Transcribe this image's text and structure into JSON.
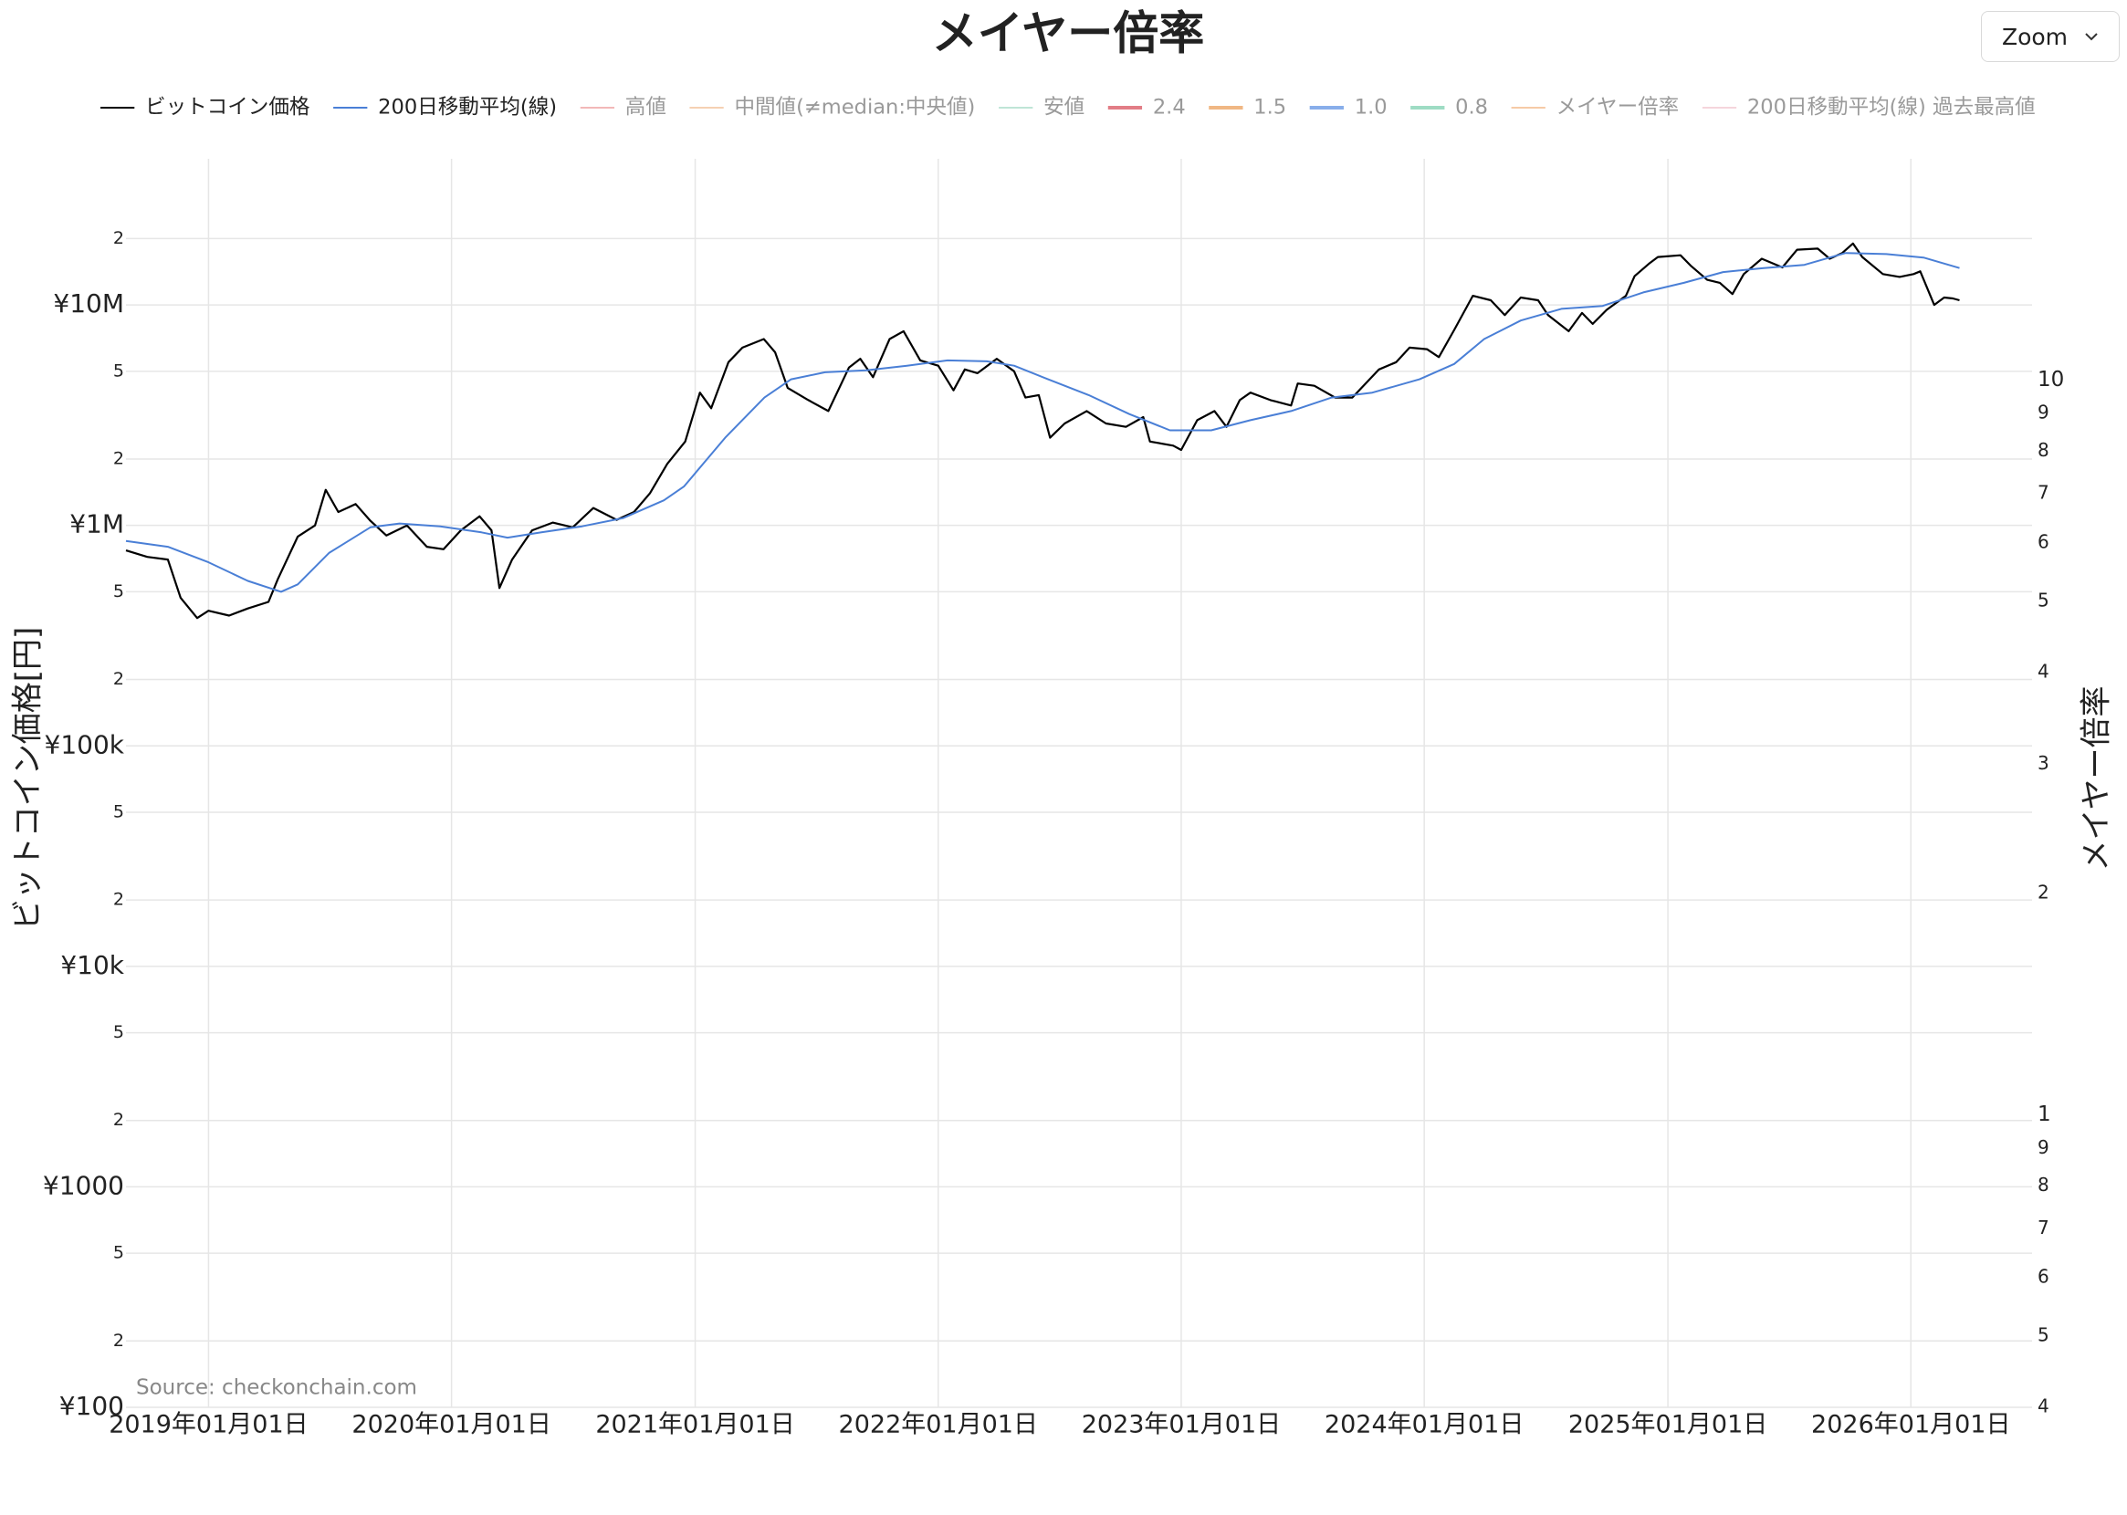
{
  "ui": {
    "zoom_button": "Zoom"
  },
  "chart_data": {
    "type": "line",
    "title": "メイヤー倍率",
    "y_axis_title": "ビットコイン価格[円]",
    "y2_axis_title": "メイヤー倍率",
    "annotation": "Source: checkonchain.com",
    "ylog": true,
    "y2log": true,
    "grid": true,
    "legend_position": "top",
    "xlim": [
      "2018-08-30",
      "2026-07-02"
    ],
    "xticks": [
      {
        "value": "2019-01-01",
        "label": "2019年01月01日"
      },
      {
        "value": "2020-01-01",
        "label": "2020年01月01日"
      },
      {
        "value": "2021-01-01",
        "label": "2021年01月01日"
      },
      {
        "value": "2022-01-01",
        "label": "2022年01月01日"
      },
      {
        "value": "2023-01-01",
        "label": "2023年01月01日"
      },
      {
        "value": "2024-01-01",
        "label": "2024年01月01日"
      },
      {
        "value": "2025-01-01",
        "label": "2025年01月01日"
      },
      {
        "value": "2026-01-01",
        "label": "2026年01月01日"
      }
    ],
    "ylim": [
      100,
      46000000
    ],
    "yticks": [
      {
        "value": 100,
        "label": "¥100"
      },
      2,
      5,
      {
        "value": 200,
        "label": "2"
      },
      {
        "value": 500,
        "label": "5"
      },
      {
        "value": 1000,
        "label": "¥1000"
      },
      {
        "value": 2000,
        "label": "2"
      },
      {
        "value": 5000,
        "label": "5"
      },
      {
        "value": 10000,
        "label": "¥10k"
      },
      {
        "value": 20000,
        "label": "2"
      },
      {
        "value": 50000,
        "label": "5"
      },
      {
        "value": 100000,
        "label": "¥100k"
      },
      {
        "value": 200000,
        "label": "2"
      },
      {
        "value": 500000,
        "label": "5"
      },
      {
        "value": 1000000,
        "label": "¥1M"
      },
      {
        "value": 2000000,
        "label": "2"
      },
      {
        "value": 5000000,
        "label": "5"
      },
      {
        "value": 10000000,
        "label": "¥10M"
      },
      {
        "value": 20000000,
        "label": "2"
      }
    ],
    "y2lim": [
      0.4,
      20
    ],
    "y2ticks": [
      {
        "value": 0.4,
        "label": "4"
      },
      {
        "value": 0.5,
        "label": "5"
      },
      {
        "value": 0.6,
        "label": "6"
      },
      {
        "value": 0.7,
        "label": "7"
      },
      {
        "value": 0.8,
        "label": "8"
      },
      {
        "value": 0.9,
        "label": "9"
      },
      1,
      2,
      3,
      4,
      5,
      6,
      7,
      8,
      9,
      10
    ],
    "series": [
      {
        "name": "ビットコイン価格",
        "color": "#000000",
        "visible": true,
        "x": [
          "2018-08-30",
          "2018-10-01",
          "2018-11-01",
          "2018-11-20",
          "2018-12-15",
          "2019-01-01",
          "2019-02-01",
          "2019-03-01",
          "2019-04-01",
          "2019-04-15",
          "2019-05-15",
          "2019-06-10",
          "2019-06-26",
          "2019-07-15",
          "2019-08-10",
          "2019-09-01",
          "2019-09-25",
          "2019-10-26",
          "2019-11-25",
          "2019-12-20",
          "2020-01-15",
          "2020-02-12",
          "2020-03-01",
          "2020-03-13",
          "2020-04-01",
          "2020-05-01",
          "2020-06-01",
          "2020-07-01",
          "2020-08-01",
          "2020-09-05",
          "2020-10-01",
          "2020-10-25",
          "2020-11-20",
          "2020-12-17",
          "2021-01-08",
          "2021-01-25",
          "2021-02-20",
          "2021-03-13",
          "2021-04-14",
          "2021-05-01",
          "2021-05-20",
          "2021-06-20",
          "2021-07-20",
          "2021-08-20",
          "2021-09-06",
          "2021-09-25",
          "2021-10-20",
          "2021-11-10",
          "2021-12-05",
          "2022-01-01",
          "2022-01-24",
          "2022-02-10",
          "2022-03-01",
          "2022-03-30",
          "2022-04-25",
          "2022-05-12",
          "2022-06-01",
          "2022-06-18",
          "2022-07-10",
          "2022-08-12",
          "2022-09-10",
          "2022-10-10",
          "2022-11-05",
          "2022-11-15",
          "2022-12-20",
          "2023-01-01",
          "2023-01-25",
          "2023-02-20",
          "2023-03-10",
          "2023-03-30",
          "2023-04-15",
          "2023-05-15",
          "2023-06-15",
          "2023-06-25",
          "2023-07-20",
          "2023-08-20",
          "2023-09-15",
          "2023-10-25",
          "2023-11-20",
          "2023-12-10",
          "2024-01-05",
          "2024-01-23",
          "2024-02-15",
          "2024-03-14",
          "2024-04-10",
          "2024-05-01",
          "2024-05-25",
          "2024-06-20",
          "2024-07-05",
          "2024-08-05",
          "2024-08-25",
          "2024-09-10",
          "2024-10-01",
          "2024-10-30",
          "2024-11-12",
          "2024-12-05",
          "2024-12-17",
          "2025-01-20",
          "2025-02-05",
          "2025-03-01",
          "2025-03-20",
          "2025-04-08",
          "2025-04-25",
          "2025-05-22",
          "2025-06-22",
          "2025-07-14",
          "2025-08-14",
          "2025-09-01",
          "2025-09-20",
          "2025-10-06",
          "2025-10-20",
          "2025-11-20",
          "2025-12-15",
          "2026-01-05",
          "2026-01-15",
          "2026-02-05",
          "2026-02-20",
          "2026-03-05",
          "2026-03-15"
        ],
        "values": [
          770000,
          720000,
          700000,
          470000,
          380000,
          410000,
          390000,
          420000,
          450000,
          570000,
          890000,
          1000000,
          1450000,
          1150000,
          1250000,
          1050000,
          900000,
          1000000,
          800000,
          780000,
          950000,
          1100000,
          950000,
          520000,
          700000,
          950000,
          1030000,
          980000,
          1200000,
          1060000,
          1150000,
          1400000,
          1900000,
          2400000,
          4000000,
          3400000,
          5500000,
          6400000,
          7000000,
          6100000,
          4200000,
          3700000,
          3300000,
          5200000,
          5700000,
          4700000,
          7000000,
          7600000,
          5600000,
          5300000,
          4100000,
          5100000,
          4900000,
          5700000,
          5000000,
          3800000,
          3900000,
          2500000,
          2900000,
          3300000,
          2900000,
          2800000,
          3100000,
          2400000,
          2300000,
          2200000,
          3000000,
          3300000,
          2800000,
          3700000,
          4000000,
          3700000,
          3500000,
          4400000,
          4300000,
          3800000,
          3800000,
          5100000,
          5500000,
          6400000,
          6300000,
          5800000,
          7700000,
          11000000,
          10500000,
          9000000,
          10800000,
          10500000,
          9000000,
          7600000,
          9200000,
          8200000,
          9500000,
          11000000,
          13500000,
          15500000,
          16500000,
          16800000,
          15000000,
          13000000,
          12600000,
          11200000,
          13800000,
          16200000,
          14800000,
          17800000,
          18000000,
          16200000,
          17200000,
          19000000,
          16500000,
          13800000,
          13400000,
          13800000,
          14200000,
          10000000,
          10800000,
          10700000,
          10500000
        ]
      },
      {
        "name": "200日移動平均(線)",
        "color": "#4a7fd6",
        "visible": true,
        "x": [
          "2018-08-30",
          "2018-11-01",
          "2019-01-01",
          "2019-03-01",
          "2019-04-20",
          "2019-05-15",
          "2019-07-01",
          "2019-09-01",
          "2019-10-15",
          "2019-12-15",
          "2020-02-15",
          "2020-03-25",
          "2020-05-15",
          "2020-07-15",
          "2020-09-15",
          "2020-11-15",
          "2020-12-15",
          "2021-02-15",
          "2021-04-15",
          "2021-05-25",
          "2021-07-15",
          "2021-09-15",
          "2021-11-15",
          "2022-01-15",
          "2022-03-15",
          "2022-04-25",
          "2022-06-15",
          "2022-08-15",
          "2022-10-15",
          "2022-12-15",
          "2023-02-15",
          "2023-04-15",
          "2023-06-15",
          "2023-08-15",
          "2023-10-15",
          "2023-12-25",
          "2024-02-15",
          "2024-03-31",
          "2024-05-25",
          "2024-07-25",
          "2024-09-25",
          "2024-11-25",
          "2025-01-25",
          "2025-03-25",
          "2025-05-25",
          "2025-07-25",
          "2025-09-25",
          "2025-11-25",
          "2026-01-20",
          "2026-03-15"
        ],
        "values": [
          850000,
          800000,
          680000,
          560000,
          500000,
          540000,
          750000,
          980000,
          1020000,
          990000,
          930000,
          880000,
          930000,
          990000,
          1080000,
          1300000,
          1500000,
          2500000,
          3800000,
          4600000,
          4950000,
          5050000,
          5300000,
          5600000,
          5550000,
          5300000,
          4600000,
          3900000,
          3200000,
          2700000,
          2700000,
          3000000,
          3300000,
          3800000,
          4000000,
          4600000,
          5400000,
          7000000,
          8500000,
          9600000,
          9900000,
          11400000,
          12600000,
          14100000,
          14700000,
          15200000,
          17200000,
          17000000,
          16400000,
          14700000
        ]
      },
      {
        "name": "高値",
        "color": "#f2b8b8",
        "visible": false
      },
      {
        "name": "中間値(≠median:中央値)",
        "color": "#f5d1b3",
        "visible": false
      },
      {
        "name": "安値",
        "color": "#bfe5d6",
        "visible": false
      },
      {
        "name": "2.4",
        "color": "#e27d86",
        "visible": false
      },
      {
        "name": "1.5",
        "color": "#f0b784",
        "visible": false
      },
      {
        "name": "1.0",
        "color": "#88aeea",
        "visible": false
      },
      {
        "name": "0.8",
        "color": "#9edcc4",
        "visible": false
      },
      {
        "name": "メイヤー倍率",
        "color": "#f6caa6",
        "visible": false
      },
      {
        "name": "200日移動平均(線) 過去最高値",
        "color": "#f5d5dc",
        "visible": false
      }
    ]
  }
}
